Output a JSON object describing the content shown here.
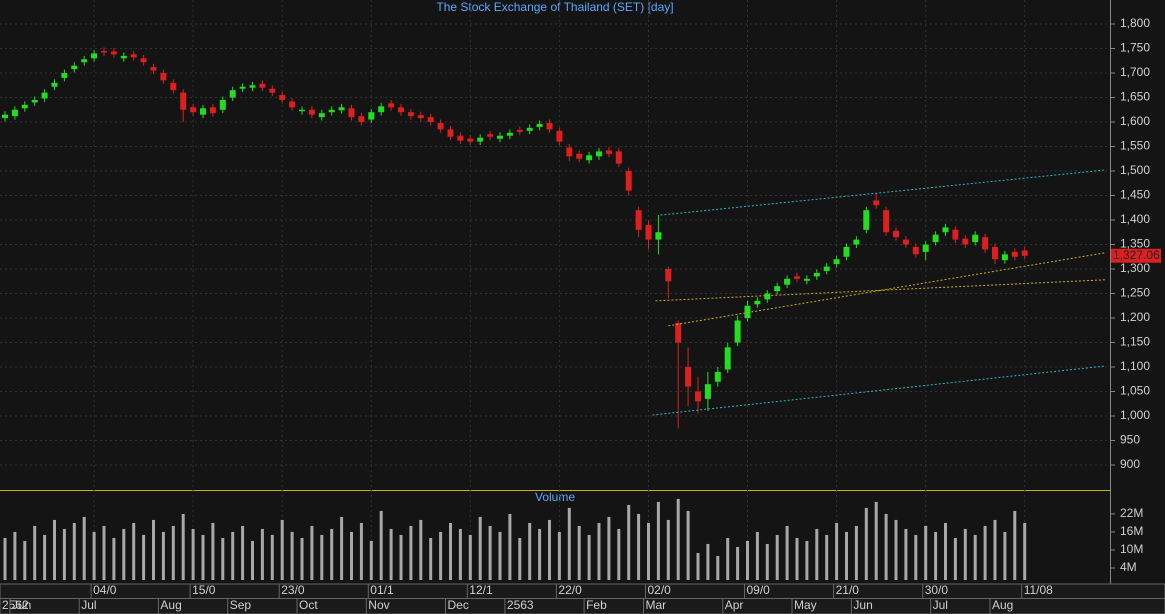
{
  "chart_data": [
    {
      "type": "candlestick",
      "title": "The Stock Exchange of Thailand (SET) [day]",
      "categories": [
        null,
        null,
        null,
        null,
        null,
        null,
        null,
        null,
        null,
        "04/0",
        null,
        null,
        null,
        null,
        null,
        null,
        null,
        null,
        null,
        "15/0",
        null,
        null,
        null,
        null,
        null,
        null,
        null,
        null,
        "23/0",
        null,
        null,
        null,
        null,
        null,
        null,
        null,
        null,
        "01/1",
        null,
        null,
        null,
        null,
        null,
        null,
        null,
        null,
        null,
        "12/1",
        null,
        null,
        null,
        null,
        null,
        null,
        null,
        null,
        "22/0",
        null,
        null,
        null,
        null,
        null,
        null,
        null,
        null,
        "02/0",
        null,
        null,
        null,
        null,
        null,
        null,
        null,
        null,
        null,
        "09/0",
        null,
        null,
        null,
        null,
        null,
        null,
        null,
        null,
        "21/0",
        null,
        null,
        null,
        null,
        null,
        null,
        null,
        null,
        "30/0",
        null,
        null,
        null,
        null,
        null,
        null,
        null,
        null,
        null,
        "11/08"
      ],
      "months": [
        "2562",
        "Jun",
        null,
        null,
        null,
        null,
        null,
        null,
        "Jul",
        null,
        null,
        null,
        null,
        null,
        null,
        null,
        "Aug",
        null,
        null,
        null,
        null,
        null,
        null,
        "Sep",
        null,
        null,
        null,
        null,
        null,
        null,
        "Oct",
        null,
        null,
        null,
        null,
        null,
        null,
        "Nov",
        null,
        null,
        null,
        null,
        null,
        null,
        null,
        "Dec",
        null,
        null,
        null,
        null,
        null,
        "2563",
        null,
        null,
        null,
        null,
        null,
        null,
        null,
        "Feb",
        null,
        null,
        null,
        null,
        null,
        "Mar",
        null,
        null,
        null,
        null,
        null,
        null,
        null,
        "Apr",
        null,
        null,
        null,
        null,
        null,
        null,
        "May",
        null,
        null,
        null,
        null,
        null,
        "Jun",
        null,
        null,
        null,
        null,
        null,
        null,
        null,
        "Jul",
        null,
        null,
        null,
        null,
        null,
        "Aug",
        null,
        null,
        null
      ],
      "open": [
        1608,
        1612,
        1628,
        1640,
        1648,
        1672,
        1690,
        1708,
        1722,
        1730,
        1745,
        1744,
        1730,
        1738,
        1730,
        1712,
        1700,
        1680,
        1660,
        1630,
        1615,
        1630,
        1625,
        1650,
        1668,
        1670,
        1678,
        1668,
        1655,
        1642,
        1622,
        1625,
        1610,
        1620,
        1624,
        1628,
        1612,
        1605,
        1620,
        1638,
        1630,
        1620,
        1614,
        1610,
        1598,
        1585,
        1572,
        1566,
        1560,
        1575,
        1566,
        1572,
        1584,
        1582,
        1590,
        1598,
        1582,
        1548,
        1535,
        1522,
        1530,
        1542,
        1540,
        1500,
        1420,
        1390,
        1360,
        1300,
        1190,
        1100,
        1050,
        1035,
        1070,
        1095,
        1150,
        1200,
        1228,
        1238,
        1255,
        1268,
        1285,
        1276,
        1285,
        1296,
        1310,
        1325,
        1350,
        1380,
        1440,
        1420,
        1378,
        1360,
        1345,
        1335,
        1355,
        1375,
        1380,
        1362,
        1355,
        1365,
        1345,
        1318,
        1335,
        1338
      ],
      "high": [
        1622,
        1632,
        1642,
        1652,
        1667,
        1687,
        1707,
        1722,
        1735,
        1747,
        1752,
        1751,
        1742,
        1745,
        1737,
        1719,
        1707,
        1687,
        1667,
        1637,
        1635,
        1637,
        1652,
        1672,
        1679,
        1682,
        1685,
        1675,
        1662,
        1649,
        1632,
        1632,
        1625,
        1632,
        1637,
        1635,
        1619,
        1627,
        1639,
        1645,
        1637,
        1627,
        1621,
        1617,
        1605,
        1592,
        1579,
        1573,
        1575,
        1582,
        1579,
        1585,
        1591,
        1595,
        1603,
        1605,
        1589,
        1555,
        1542,
        1539,
        1547,
        1549,
        1547,
        1507,
        1427,
        1400,
        1410,
        1305,
        1195,
        1140,
        1080,
        1090,
        1100,
        1150,
        1205,
        1235,
        1242,
        1257,
        1272,
        1287,
        1292,
        1287,
        1299,
        1312,
        1327,
        1352,
        1367,
        1427,
        1455,
        1427,
        1385,
        1367,
        1352,
        1357,
        1377,
        1392,
        1387,
        1369,
        1377,
        1372,
        1352,
        1337,
        1342,
        1345
      ],
      "low": [
        1601,
        1605,
        1621,
        1633,
        1641,
        1665,
        1683,
        1701,
        1715,
        1723,
        1735,
        1731,
        1723,
        1725,
        1715,
        1698,
        1678,
        1658,
        1600,
        1613,
        1608,
        1611,
        1618,
        1643,
        1661,
        1663,
        1663,
        1653,
        1638,
        1623,
        1615,
        1608,
        1603,
        1613,
        1617,
        1603,
        1593,
        1598,
        1613,
        1623,
        1613,
        1605,
        1601,
        1593,
        1578,
        1563,
        1555,
        1553,
        1553,
        1563,
        1559,
        1565,
        1573,
        1575,
        1583,
        1578,
        1553,
        1520,
        1518,
        1515,
        1523,
        1528,
        1508,
        1450,
        1365,
        1340,
        1330,
        1240,
        975,
        1020,
        1005,
        1010,
        1060,
        1088,
        1143,
        1193,
        1221,
        1231,
        1248,
        1261,
        1273,
        1269,
        1278,
        1289,
        1303,
        1318,
        1343,
        1373,
        1423,
        1368,
        1358,
        1343,
        1323,
        1318,
        1348,
        1368,
        1353,
        1343,
        1348,
        1333,
        1310,
        1311,
        1318,
        1320
      ],
      "close": [
        1615,
        1625,
        1635,
        1645,
        1660,
        1680,
        1700,
        1715,
        1728,
        1740,
        1742,
        1738,
        1735,
        1732,
        1722,
        1705,
        1685,
        1665,
        1625,
        1620,
        1628,
        1618,
        1645,
        1665,
        1672,
        1675,
        1670,
        1660,
        1645,
        1630,
        1625,
        1615,
        1618,
        1625,
        1630,
        1610,
        1600,
        1620,
        1632,
        1630,
        1620,
        1612,
        1608,
        1600,
        1585,
        1570,
        1562,
        1560,
        1568,
        1570,
        1572,
        1578,
        1580,
        1588,
        1596,
        1585,
        1560,
        1530,
        1525,
        1532,
        1540,
        1535,
        1515,
        1460,
        1380,
        1360,
        1375,
        1275,
        1150,
        1060,
        1030,
        1065,
        1090,
        1140,
        1195,
        1225,
        1235,
        1250,
        1265,
        1280,
        1280,
        1280,
        1292,
        1305,
        1320,
        1345,
        1360,
        1420,
        1430,
        1375,
        1365,
        1350,
        1330,
        1350,
        1370,
        1385,
        1360,
        1350,
        1370,
        1340,
        1320,
        1330,
        1325,
        1327.06
      ],
      "up_color": "#22dd22",
      "down_color": "#dd1f1f",
      "ylim": [
        849,
        1849
      ],
      "yticks": [
        900,
        {
          "value": 950,
          "label": "950"
        },
        {
          "value": 1000,
          "label": "1,000"
        },
        {
          "value": 1050,
          "label": "1,050"
        },
        {
          "value": 1100,
          "label": "1,100"
        },
        {
          "value": 1150,
          "label": "1,150"
        },
        {
          "value": 1200,
          "label": "1,200"
        },
        {
          "value": 1250,
          "label": "1,250"
        },
        {
          "value": 1300,
          "label": "1,300"
        },
        {
          "value": 1350,
          "label": "1,350"
        },
        {
          "value": 1400,
          "label": "1,400"
        },
        {
          "value": 1450,
          "label": "1,450"
        },
        {
          "value": 1500,
          "label": "1,500"
        },
        {
          "value": 1550,
          "label": "1,550"
        },
        {
          "value": 1600,
          "label": "1,600"
        },
        {
          "value": 1650,
          "label": "1,650"
        },
        {
          "value": 1700,
          "label": "1,700"
        },
        {
          "value": 1750,
          "label": "1,750"
        },
        {
          "value": 1800,
          "label": "1,800"
        }
      ],
      "grid": true,
      "trendlines": [
        {
          "color": "#22b8c8",
          "start": [
            66.2,
            1410
          ],
          "end": [
            111.1,
            1502
          ]
        },
        {
          "color": "#22b8c8",
          "start": [
            65.4,
            1002
          ],
          "end": [
            111.1,
            1102
          ]
        },
        {
          "color": "#c8b400",
          "start": [
            67.0,
            1184
          ],
          "end": [
            111.1,
            1333
          ]
        },
        {
          "color": "#c8b400",
          "start": [
            65.7,
            1235
          ],
          "end": [
            111.1,
            1278
          ]
        }
      ],
      "last_label": {
        "value": 1327.06,
        "label": "1,327.06"
      }
    },
    {
      "type": "bar",
      "title": "Volume",
      "color": "#a8a8a8",
      "values": [
        14,
        16,
        13,
        18,
        15,
        20,
        17,
        19,
        21,
        16,
        18,
        14,
        17,
        19,
        15,
        20,
        16,
        18,
        22,
        17,
        15,
        19,
        14,
        16,
        18,
        13,
        17,
        15,
        20,
        16,
        14,
        18,
        15,
        17,
        21,
        16,
        19,
        13,
        23,
        17,
        15,
        18,
        20,
        14,
        16,
        19,
        17,
        15,
        21,
        18,
        16,
        22,
        14,
        19,
        17,
        20,
        16,
        24,
        18,
        15,
        19,
        21,
        17,
        25,
        22,
        19,
        26,
        20,
        27,
        23,
        9,
        12,
        8,
        14,
        11,
        13,
        16,
        12,
        15,
        18,
        14,
        13,
        17,
        15,
        19,
        16,
        18,
        24,
        26,
        22,
        20,
        17,
        15,
        18,
        16,
        19,
        14,
        17,
        15,
        18,
        20,
        16,
        23,
        19
      ],
      "ylim": [
        0,
        29.3
      ],
      "yticks": [
        {
          "value": 4,
          "label": "4M"
        },
        {
          "value": 10,
          "label": "10M"
        },
        {
          "value": 16,
          "label": "16M"
        },
        {
          "value": 22,
          "label": "22M"
        }
      ]
    }
  ]
}
